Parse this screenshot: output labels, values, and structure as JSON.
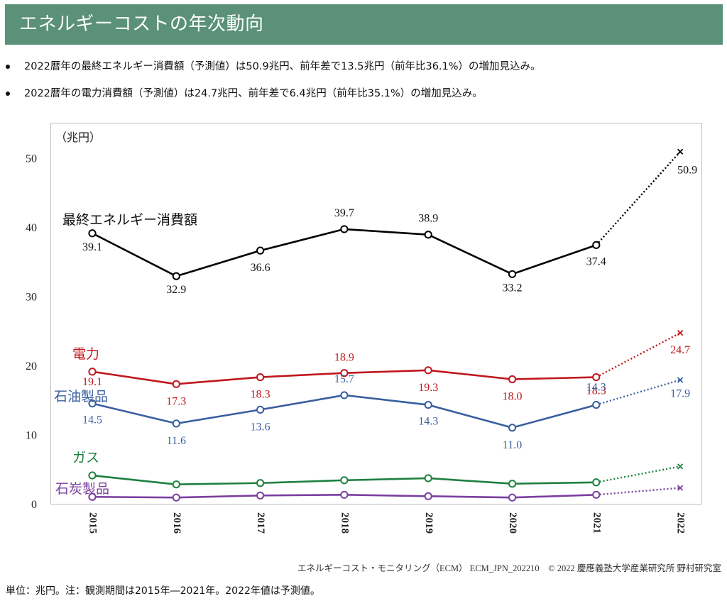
{
  "header": {
    "title": "エネルギーコストの年次動向"
  },
  "bullets": [
    "2022暦年の最終エネルギー消費額（予測値）は50.9兆円、前年差で13.5兆円（前年比36.1%）の増加見込み。",
    "2022暦年の電力消費額（予測値）は24.7兆円、前年差で6.4兆円（前年比35.1%）の増加見込み。"
  ],
  "chart_data": {
    "type": "line",
    "unit_label": "（兆円）",
    "categories": [
      "2015",
      "2016",
      "2017",
      "2018",
      "2019",
      "2020",
      "2021",
      "2022"
    ],
    "ylim": [
      0,
      55
    ],
    "yticks": [
      0,
      10,
      20,
      30,
      40,
      50
    ],
    "grid": false,
    "forecast_from_index": 7,
    "series": [
      {
        "name": "最終エネルギー消費額",
        "color": "#000000",
        "values": [
          39.1,
          32.9,
          36.6,
          39.7,
          38.9,
          33.2,
          37.4,
          50.9
        ],
        "labels": [
          "39.1",
          "32.9",
          "36.6",
          "39.7",
          "38.9",
          "33.2",
          "37.4",
          "50.9"
        ]
      },
      {
        "name": "電力",
        "color": "#c0171d",
        "values": [
          19.1,
          17.3,
          18.3,
          18.9,
          19.3,
          18.0,
          18.3,
          24.7
        ],
        "labels": [
          "19.1",
          "17.3",
          "18.3",
          "18.9",
          "19.3",
          "18.0",
          "18.3",
          "24.7"
        ]
      },
      {
        "name": "石油製品",
        "color": "#3a5fa0",
        "values": [
          14.5,
          11.6,
          13.6,
          15.7,
          14.3,
          11.0,
          14.3,
          17.9
        ],
        "labels": [
          "14.5",
          "11.6",
          "13.6",
          "15.7",
          "14.3",
          "11.0",
          "14.3",
          "17.9"
        ]
      },
      {
        "name": "ガス",
        "color": "#1e8040",
        "values": [
          4.1,
          2.8,
          3.0,
          3.4,
          3.7,
          2.9,
          3.1,
          5.4
        ],
        "labels": []
      },
      {
        "name": "石炭製品",
        "color": "#7a3fa0",
        "values": [
          1.0,
          0.9,
          1.2,
          1.3,
          1.1,
          0.9,
          1.3,
          2.3
        ],
        "labels": []
      }
    ]
  },
  "credit": "エネルギーコスト・モニタリング（ECM） ECM_JPN_202210　© 2022 慶應義塾大学産業研究所 野村研究室",
  "footnote": "単位：兆円。注：観測期間は2015年―2021年。2022年値は予測値。"
}
